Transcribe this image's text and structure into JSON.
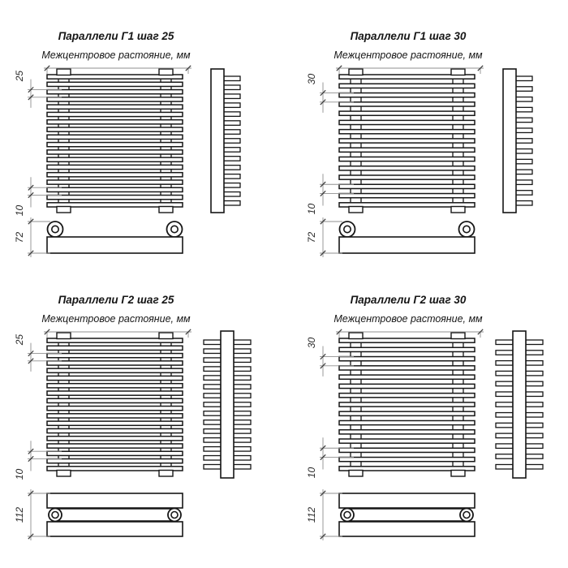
{
  "page": {
    "background": "#ffffff",
    "title": "Параллели — габаритные схемы"
  },
  "colors": {
    "line": "#161616",
    "dim": "#8f8f8f",
    "tick": "#3a3a3a",
    "text": "#161616"
  },
  "quadrants": [
    {
      "id": "g1-step25",
      "title": "Параллели Г1 шаг 25",
      "subtitle": "Межцентровое растояние, мм",
      "variant": "single",
      "bar_count": 18,
      "side_tube_count": 15,
      "dims": {
        "step": "25",
        "gap": "10",
        "depth": "72"
      }
    },
    {
      "id": "g1-step30",
      "title": "Параллели Г1 шаг 30",
      "subtitle": "Межцентровое растояние, мм",
      "variant": "single",
      "bar_count": 15,
      "side_tube_count": 13,
      "dims": {
        "step": "30",
        "gap": "10",
        "depth": "72"
      }
    },
    {
      "id": "g2-step25",
      "title": "Параллели Г2 шаг 25",
      "subtitle": "Межцентровое растояние, мм",
      "variant": "double",
      "bar_count": 18,
      "side_tube_count": 15,
      "dims": {
        "step": "25",
        "gap": "10",
        "depth": "112"
      }
    },
    {
      "id": "g2-step30",
      "title": "Параллели Г2 шаг 30",
      "subtitle": "Межцентровое растояние, мм",
      "variant": "double",
      "bar_count": 15,
      "side_tube_count": 13,
      "dims": {
        "step": "30",
        "gap": "10",
        "depth": "112"
      }
    }
  ]
}
